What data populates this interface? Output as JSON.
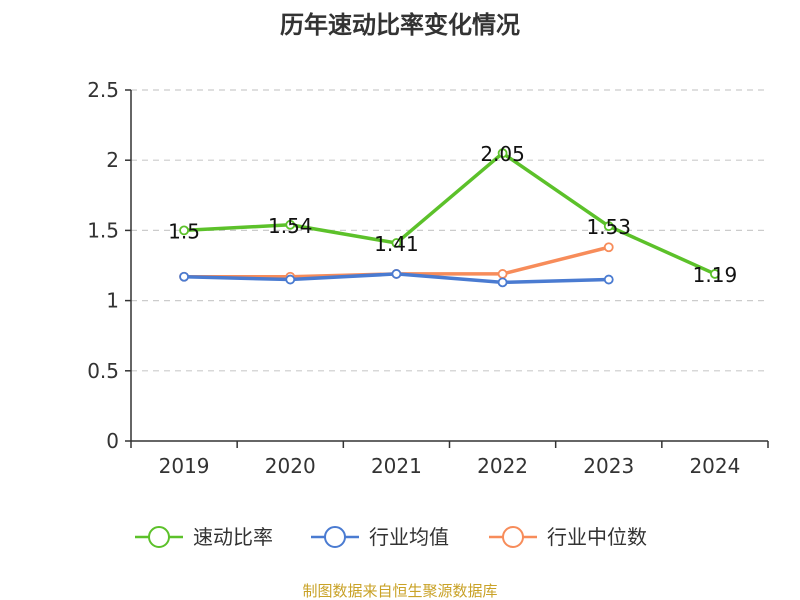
{
  "chart_data": {
    "type": "line",
    "title": "历年速动比率变化情况",
    "categories": [
      "2019",
      "2020",
      "2021",
      "2022",
      "2023",
      "2024"
    ],
    "ylim": [
      0,
      2.5
    ],
    "yticks": [
      "0",
      "0.5",
      "1",
      "1.5",
      "2",
      "2.5"
    ],
    "ytick_values": [
      0,
      0.5,
      1,
      1.5,
      2,
      2.5
    ],
    "grid": true,
    "legend_position": "bottom",
    "series": [
      {
        "name": "速动比率",
        "color": "#5cc12a",
        "values": [
          1.5,
          1.54,
          1.41,
          2.05,
          1.53,
          1.19
        ],
        "labels": [
          "1.5",
          "1.54",
          "1.41",
          "2.05",
          "1.53",
          "1.19"
        ]
      },
      {
        "name": "行业均值",
        "color": "#4a7bd1",
        "values": [
          1.17,
          1.15,
          1.19,
          1.13,
          1.15,
          null
        ]
      },
      {
        "name": "行业中位数",
        "color": "#f78c5a",
        "values": [
          1.17,
          1.17,
          1.19,
          1.19,
          1.38,
          null
        ]
      }
    ]
  },
  "source": {
    "text": "制图数据来自恒生聚源数据库",
    "color": "#c9a227"
  }
}
